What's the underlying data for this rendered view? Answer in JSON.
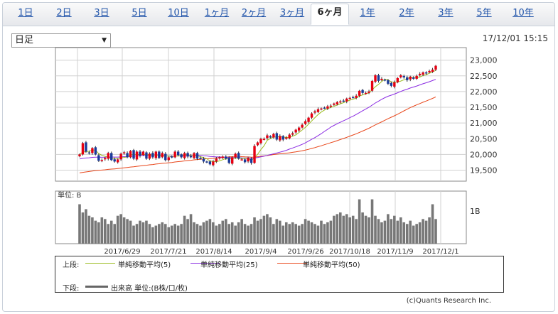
{
  "tabs": [
    {
      "label": "1日",
      "active": false
    },
    {
      "label": "2日",
      "active": false
    },
    {
      "label": "3日",
      "active": false
    },
    {
      "label": "5日",
      "active": false
    },
    {
      "label": "10日",
      "active": false
    },
    {
      "label": "1ヶ月",
      "active": false
    },
    {
      "label": "2ヶ月",
      "active": false
    },
    {
      "label": "3ヶ月",
      "active": false
    },
    {
      "label": "6ヶ月",
      "active": true
    },
    {
      "label": "1年",
      "active": false
    },
    {
      "label": "2年",
      "active": false
    },
    {
      "label": "3年",
      "active": false
    },
    {
      "label": "5年",
      "active": false
    },
    {
      "label": "10年",
      "active": false
    }
  ],
  "selector": {
    "value": "日足"
  },
  "timestamp": "17/12/01 15:15",
  "legend": {
    "upper_label": "上段:",
    "lower_label": "下段:",
    "ma5": "単純移動平均(5)",
    "ma25": "単純移動平均(25)",
    "ma50": "単純移動平均(50)",
    "volume": "出来高 単位:(B株/口/枚)"
  },
  "credit": "(c)Quants Research Inc.",
  "chart_data": {
    "type": "candlestick",
    "price_axis": {
      "ylim": [
        19150,
        23400
      ],
      "ticks": [
        19500,
        20000,
        20500,
        21000,
        21500,
        22000,
        22500,
        23000
      ],
      "tick_labels": [
        "19,500",
        "20,000",
        "20,500",
        "21,000",
        "21,500",
        "22,000",
        "22,500",
        "23,000"
      ]
    },
    "volume_axis": {
      "unit_label": "単位: B",
      "tick_label": "1B",
      "tick_value": 1.0,
      "ylim": [
        0,
        1.6
      ]
    },
    "x_labels": [
      "2017/6/29",
      "2017/7/21",
      "2017/8/14",
      "2017/9/4",
      "2017/9/26",
      "2017/10/18",
      "2017/11/9",
      "2017/12/1"
    ],
    "start": 20000,
    "end": 22820,
    "candles": [
      {
        "c": [
          0,
          0.8,
          0.2,
          0.1,
          0.45,
          0.0,
          -0.45,
          -0.4,
          -0.25,
          0.1,
          -0.4,
          -0.5,
          -0.35,
          0.05,
          0.15,
          -0.2,
          0.25,
          -0.3,
          0.2,
          -0.1,
          0.2,
          -0.3,
          0.05,
          -0.2,
          0.2,
          -0.25,
          0.1,
          -0.4,
          -0.2,
          -0.15,
          0.2,
          -0.05,
          -0.2,
          0.1,
          -0.15,
          -0.2,
          0.1,
          -0.3,
          -0.25,
          -0.5,
          -0.55,
          -0.7,
          -0.5,
          -0.3,
          -0.2,
          -0.15,
          -0.3,
          -0.6,
          -0.2,
          0.05,
          -0.3,
          -0.35,
          -0.55,
          -0.25,
          -0.6,
          0.6,
          0.85,
          1.1,
          1.1,
          1.35,
          1.2,
          1.45,
          1.05,
          1.3,
          1.05,
          1.2,
          1.4,
          1.5,
          1.75,
          1.9,
          2.1,
          2.35,
          2.6,
          2.9,
          3.05,
          3.2,
          3.25,
          3.3,
          3.4,
          3.45,
          3.6,
          3.7,
          3.75,
          3.8,
          3.95,
          4.0,
          4.05,
          4.15,
          4.5,
          4.35,
          4.35,
          4.45,
          5.2,
          5.6,
          5.2,
          5.35,
          5.25,
          5.0,
          4.85,
          5.1,
          5.4,
          5.6,
          5.45,
          5.25,
          5.5,
          5.35,
          5.55,
          5.7,
          5.8,
          5.75,
          5.9,
          6.0,
          6.25
        ]
      }
    ],
    "volumes": [
      1.2,
      0.95,
      1.05,
      0.85,
      0.8,
      0.7,
      0.65,
      0.8,
      0.75,
      0.6,
      0.7,
      0.6,
      0.85,
      0.9,
      0.8,
      0.75,
      0.7,
      0.55,
      0.6,
      0.7,
      0.65,
      0.7,
      0.6,
      0.5,
      0.55,
      0.6,
      0.65,
      0.6,
      0.5,
      0.55,
      0.6,
      0.55,
      0.6,
      0.85,
      0.75,
      0.9,
      0.65,
      0.6,
      0.55,
      0.65,
      0.7,
      0.75,
      0.65,
      0.55,
      0.6,
      0.7,
      0.75,
      0.6,
      0.65,
      0.55,
      0.65,
      0.75,
      0.6,
      0.55,
      0.6,
      0.8,
      0.7,
      0.75,
      0.85,
      0.9,
      0.8,
      0.6,
      0.75,
      0.7,
      0.55,
      0.65,
      0.6,
      0.65,
      0.6,
      0.55,
      0.6,
      0.75,
      0.7,
      0.65,
      0.6,
      0.55,
      0.7,
      0.6,
      0.65,
      0.7,
      0.85,
      0.9,
      0.95,
      0.85,
      0.9,
      0.8,
      0.85,
      0.75,
      1.35,
      0.95,
      0.85,
      0.8,
      1.35,
      0.85,
      0.75,
      0.65,
      0.7,
      0.9,
      0.75,
      0.85,
      0.7,
      0.8,
      0.65,
      0.6,
      0.7,
      0.55,
      0.6,
      0.65,
      0.75,
      0.7,
      0.8,
      1.2,
      0.75
    ]
  }
}
